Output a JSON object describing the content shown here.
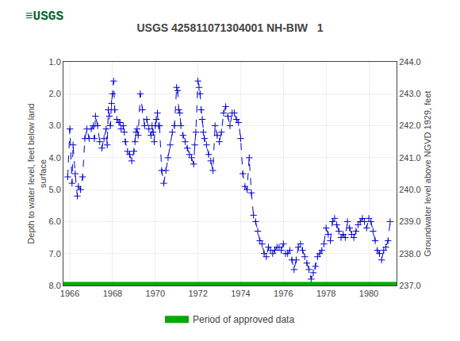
{
  "chart_data": {
    "type": "line",
    "title": "USGS 425811071304001 NH-BIW   1",
    "annotations": [
      "≡USGS"
    ],
    "ylabel": "Depth to water level, feet below land\nsurface",
    "y2label": "Groundwater level above NGVD 1929, feet",
    "xlim": [
      1965.7,
      1981.3
    ],
    "xticks": [
      1966,
      1968,
      1970,
      1972,
      1974,
      1976,
      1978,
      1980
    ],
    "ylim": [
      8.0,
      1.0
    ],
    "yticks": [
      {
        "value": 1.0,
        "label": "1.0"
      },
      {
        "value": 2.0,
        "label": "2.0"
      },
      {
        "value": 3.0,
        "label": "3.0"
      },
      {
        "value": 4.0,
        "label": "4.0"
      },
      {
        "value": 5.0,
        "label": "5.0"
      },
      {
        "value": 6.0,
        "label": "6.0"
      },
      {
        "value": 7.0,
        "label": "7.0"
      },
      {
        "value": 8.0,
        "label": "8.0"
      }
    ],
    "y2lim": [
      237.0,
      244.0
    ],
    "y2ticks": [
      {
        "value": 237.0,
        "label": "237.0"
      },
      {
        "value": 238.0,
        "label": "238.0"
      },
      {
        "value": 239.0,
        "label": "239.0"
      },
      {
        "value": 240.0,
        "label": "240.0"
      },
      {
        "value": 241.0,
        "label": "241.0"
      },
      {
        "value": 242.0,
        "label": "242.0"
      },
      {
        "value": 243.0,
        "label": "243.0"
      },
      {
        "value": 244.0,
        "label": "244.0"
      }
    ],
    "grid": true,
    "legend": "bottom",
    "series": [
      {
        "type": "line",
        "color": "#0000cc",
        "marker": "+",
        "line_style": "dashed",
        "x": [
          1965.9,
          1966.0,
          1966.1,
          1966.15,
          1966.25,
          1966.35,
          1966.4,
          1966.5,
          1966.6,
          1966.7,
          1966.8,
          1966.9,
          1967.0,
          1967.1,
          1967.15,
          1967.2,
          1967.3,
          1967.4,
          1967.5,
          1967.6,
          1967.7,
          1967.75,
          1967.8,
          1967.85,
          1967.9,
          1967.95,
          1968.0,
          1968.05,
          1968.1,
          1968.2,
          1968.3,
          1968.35,
          1968.4,
          1968.5,
          1968.55,
          1968.6,
          1968.7,
          1968.8,
          1968.9,
          1969.0,
          1969.05,
          1969.1,
          1969.15,
          1969.2,
          1969.3,
          1969.4,
          1969.5,
          1969.6,
          1969.7,
          1969.8,
          1969.85,
          1969.9,
          1969.95,
          1970.0,
          1970.05,
          1970.1,
          1970.15,
          1970.2,
          1970.3,
          1970.4,
          1970.5,
          1970.6,
          1970.7,
          1970.8,
          1970.9,
          1971.0,
          1971.05,
          1971.1,
          1971.15,
          1971.2,
          1971.3,
          1971.4,
          1971.5,
          1971.6,
          1971.7,
          1971.8,
          1971.85,
          1971.9,
          1972.0,
          1972.05,
          1972.1,
          1972.15,
          1972.2,
          1972.25,
          1972.3,
          1972.4,
          1972.5,
          1972.6,
          1972.7,
          1972.8,
          1972.9,
          1973.0,
          1973.1,
          1973.2,
          1973.3,
          1973.4,
          1973.5,
          1973.6,
          1973.7,
          1973.8,
          1973.9,
          1974.0,
          1974.1,
          1974.2,
          1974.3,
          1974.4,
          1974.5,
          1974.6,
          1974.7,
          1974.8,
          1974.9,
          1975.0,
          1975.1,
          1975.2,
          1975.3,
          1975.4,
          1975.5,
          1975.6,
          1975.7,
          1975.8,
          1975.9,
          1976.0,
          1976.1,
          1976.2,
          1976.3,
          1976.4,
          1976.5,
          1976.6,
          1976.7,
          1976.8,
          1976.9,
          1977.0,
          1977.1,
          1977.2,
          1977.3,
          1977.4,
          1977.5,
          1977.6,
          1977.7,
          1977.8,
          1977.9,
          1978.0,
          1978.1,
          1978.2,
          1978.3,
          1978.4,
          1978.5,
          1978.6,
          1978.7,
          1978.8,
          1978.9,
          1979.0,
          1979.1,
          1979.2,
          1979.3,
          1979.4,
          1979.5,
          1979.6,
          1979.7,
          1979.8,
          1979.9,
          1980.0,
          1980.1,
          1980.2,
          1980.3,
          1980.4,
          1980.5,
          1980.6,
          1980.7,
          1980.8,
          1980.9,
          1981.0
        ],
        "values": [
          4.6,
          3.1,
          4.8,
          3.6,
          4.5,
          5.2,
          4.9,
          5.0,
          4.6,
          3.4,
          3.1,
          3.4,
          3.1,
          3.0,
          3.4,
          2.7,
          3.0,
          3.5,
          3.7,
          3.4,
          3.1,
          3.6,
          2.5,
          2.7,
          3.0,
          2.3,
          2.0,
          1.6,
          2.5,
          2.8,
          2.9,
          2.9,
          3.1,
          3.0,
          3.2,
          3.5,
          3.8,
          3.9,
          4.1,
          3.8,
          3.5,
          3.2,
          3.1,
          3.3,
          2.0,
          2.5,
          3.0,
          2.8,
          3.1,
          3.3,
          3.0,
          3.2,
          3.5,
          3.0,
          2.8,
          2.6,
          3.0,
          3.0,
          4.4,
          4.8,
          4.4,
          4.0,
          3.6,
          3.2,
          3.0,
          1.8,
          1.9,
          2.5,
          2.6,
          3.0,
          3.3,
          3.5,
          3.7,
          3.9,
          4.0,
          4.2,
          3.6,
          3.2,
          1.6,
          1.8,
          2.0,
          2.5,
          2.8,
          3.2,
          3.4,
          3.6,
          3.9,
          4.1,
          4.4,
          3.0,
          3.3,
          3.5,
          3.2,
          2.6,
          2.4,
          2.7,
          3.0,
          2.6,
          2.6,
          2.8,
          2.9,
          3.4,
          4.5,
          4.9,
          5.0,
          4.0,
          5.1,
          5.8,
          6.0,
          6.3,
          6.6,
          6.7,
          7.0,
          7.1,
          6.8,
          6.9,
          7.0,
          6.9,
          6.8,
          6.8,
          6.9,
          6.7,
          7.0,
          7.0,
          6.9,
          7.2,
          7.5,
          7.2,
          6.8,
          6.7,
          6.9,
          7.1,
          7.3,
          7.5,
          7.8,
          7.6,
          7.4,
          7.1,
          7.0,
          6.9,
          6.7,
          6.2,
          6.4,
          6.6,
          6.0,
          5.9,
          6.1,
          6.3,
          6.5,
          6.4,
          6.5,
          6.0,
          6.2,
          6.4,
          6.5,
          6.3,
          6.1,
          6.0,
          5.9,
          6.0,
          6.2,
          5.9,
          6.0,
          6.3,
          6.6,
          6.9,
          7.0,
          7.2,
          6.9,
          6.8,
          6.6,
          6.0
        ]
      },
      {
        "type": "band",
        "name": "Period of approved data",
        "color": "#00aa00",
        "x": [
          1965.7,
          1981.3
        ],
        "values": [
          8.0,
          8.0
        ]
      }
    ]
  }
}
